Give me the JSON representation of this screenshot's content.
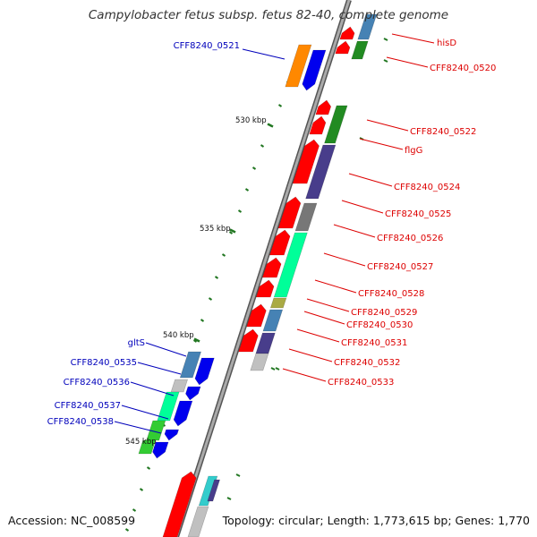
{
  "title": "Campylobacter fetus subsp. fetus 82-40, complete genome",
  "footer": {
    "accession": "Accession: NC_008599",
    "summary": "Topology: circular; Length: 1,773,615 bp; Genes: 1,770"
  },
  "colors": {
    "forward_label": "#0000bb",
    "reverse_label": "#dd0000",
    "tick": "#227722",
    "backbone": "#888888",
    "red": "#ff0000",
    "blue": "#0000ee",
    "orange": "#ff8800",
    "steel": "#4682b4",
    "green": "#228b22",
    "slate": "#483d8b",
    "gray": "#777777",
    "silver": "#c0c0c0",
    "spring": "#00ff99",
    "olive": "#aaaa44",
    "lime": "#33cc33",
    "cyan": "#33cccc"
  },
  "scale_labels": [
    "530 kbp",
    "535 kbp",
    "540 kbp",
    "545 kbp"
  ],
  "forward_genes": [
    "CFF8240_0521",
    "gltS",
    "CFF8240_0535",
    "CFF8240_0536",
    "CFF8240_0537",
    "CFF8240_0538"
  ],
  "reverse_genes": [
    "hisD",
    "CFF8240_0520",
    "CFF8240_0522",
    "flgG",
    "CFF8240_0524",
    "CFF8240_0525",
    "CFF8240_0526",
    "CFF8240_0527",
    "CFF8240_0528",
    "CFF8240_0529",
    "CFF8240_0530",
    "CFF8240_0531",
    "CFF8240_0532",
    "CFF8240_0533"
  ]
}
